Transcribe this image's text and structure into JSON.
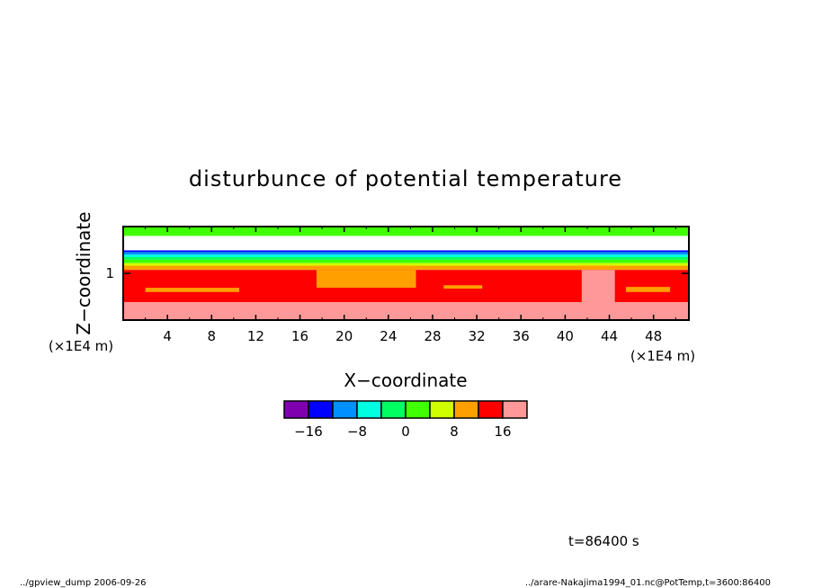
{
  "chart_data": {
    "type": "heatmap",
    "title": "disturbunce of potential temperature",
    "xlabel": "X−coordinate",
    "ylabel": "Z−coordinate",
    "x_unit": "(×1E4 m)",
    "y_unit": "(×1E4 m)",
    "xlim": [
      0,
      51.2
    ],
    "ylim": [
      0.45,
      1.55
    ],
    "x_ticks": [
      4,
      8,
      12,
      16,
      20,
      24,
      28,
      32,
      36,
      40,
      44,
      48
    ],
    "x_tick_labels": [
      "4",
      "8",
      "12",
      "16",
      "20",
      "24",
      "28",
      "32",
      "36",
      "40",
      "44",
      "48"
    ],
    "y_ticks": [
      1
    ],
    "y_tick_labels": [
      "1"
    ],
    "layers": [
      {
        "z0": 1.44,
        "z1": 1.55,
        "level": 0
      },
      {
        "z0": 1.27,
        "z1": 1.44,
        "level": null
      },
      {
        "z0": 1.25,
        "z1": 1.27,
        "level": -16
      },
      {
        "z0": 1.22,
        "z1": 1.25,
        "level": -12
      },
      {
        "z0": 1.19,
        "z1": 1.22,
        "level": -8
      },
      {
        "z0": 1.16,
        "z1": 1.19,
        "level": -4
      },
      {
        "z0": 1.12,
        "z1": 1.16,
        "level": 0
      },
      {
        "z0": 1.09,
        "z1": 1.12,
        "level": 4
      },
      {
        "z0": 1.04,
        "z1": 1.09,
        "level": 8
      },
      {
        "z0": 0.66,
        "z1": 1.04,
        "level": 12
      },
      {
        "z0": 0.45,
        "z1": 0.66,
        "level": 16
      }
    ],
    "patches": [
      {
        "x0": 17.5,
        "x1": 26.5,
        "z0": 0.83,
        "z1": 1.04,
        "level": 8
      },
      {
        "x0": 2.0,
        "x1": 10.5,
        "z0": 0.78,
        "z1": 0.83,
        "level": 8
      },
      {
        "x0": 29.0,
        "x1": 32.5,
        "z0": 0.82,
        "z1": 0.86,
        "level": 8
      },
      {
        "x0": 45.5,
        "x1": 49.5,
        "z0": 0.78,
        "z1": 0.84,
        "level": 8
      },
      {
        "x0": 41.5,
        "x1": 44.5,
        "z0": 0.45,
        "z1": 1.04,
        "level": 16
      }
    ],
    "colorbar": {
      "levels": [
        -16,
        -12,
        -8,
        -4,
        0,
        4,
        8,
        12,
        16
      ],
      "colors": [
        "#8000b0",
        "#0000ff",
        "#0090ff",
        "#00ffe0",
        "#00ff60",
        "#40ff00",
        "#d0ff00",
        "#ffa000",
        "#ff0000",
        "#ff9898"
      ],
      "tick_labels": [
        "−16",
        "−8",
        "0",
        "8",
        "16"
      ],
      "tick_values": [
        -16,
        -8,
        0,
        8,
        16
      ]
    },
    "time_label": "t=86400 s",
    "footer_left": "../gpview_dump  2006-09-26",
    "footer_right": "../arare-Nakajima1994_01.nc@PotTemp,t=3600:86400"
  }
}
